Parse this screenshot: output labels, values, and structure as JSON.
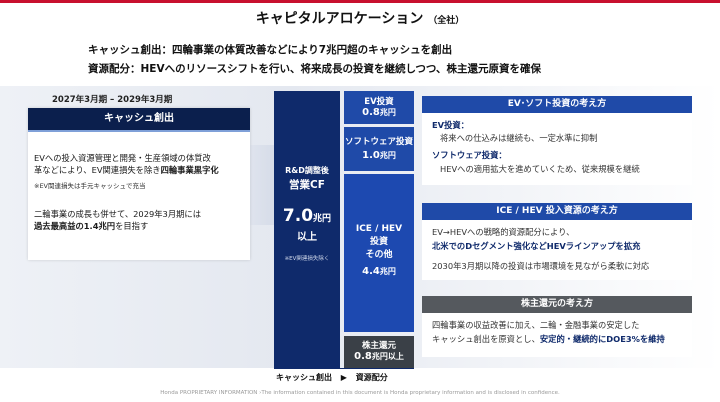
{
  "title": "キャピタルアロケーション",
  "title_sub": "（全社）",
  "summary": [
    "キャッシュ創出：四輪事業の体質改善などにより7兆円超のキャッシュを創出",
    "資源配分：HEVへのリソースシフトを行い、将来成長の投資を継続しつつ、株主還元原資を確保"
  ],
  "period": "2027年3月期 – 2029年3月期",
  "cash_creation": {
    "header": "キャッシュ創出",
    "line1": "EVへの投入資源管理と開発・生産領域の体質改",
    "line2_prefix": "革などにより、EV関連損失を除き",
    "line2_bold": "四輪事業黒字化",
    "note": "※EV関連損失は手元キャッシュで充当",
    "line3": "二輪事業の成長も併せて、2029年3月期には",
    "line4_bold": "過去最高益の1.4兆円",
    "line4_suffix": "を目指す"
  },
  "cf_bar": {
    "label1": "R&D調整後",
    "label2": "営業CF",
    "value": "7.0",
    "unit": "兆円",
    "suffix": "以上",
    "note": "※EV関連損失除く"
  },
  "allocation": [
    {
      "name": "EV投資",
      "value": "0.8",
      "unit": "兆円",
      "suffix": ""
    },
    {
      "name": "ソフトウェア投資",
      "value": "1.0",
      "unit": "兆円",
      "suffix": ""
    },
    {
      "name1": "ICE / HEV",
      "name2": "投資",
      "name3": "その他",
      "value": "4.4",
      "unit": "兆円",
      "suffix": ""
    },
    {
      "name": "株主還元",
      "value": "0.8",
      "unit": "兆円",
      "suffix": "以上"
    }
  ],
  "ev_software": {
    "header": "EV･ソフト投資の考え方",
    "label1": "EV投資：",
    "text1": "将来への仕込みは継続も、一定水準に抑制",
    "label2": "ソフトウェア投資：",
    "text2": "HEVへの適用拡大を進めていくため、従来規模を継続"
  },
  "ice_hev": {
    "header": "ICE / HEV 投入資源の考え方",
    "text1": "EV→HEVへの戦略的資源配分により、",
    "text2_bold": "北米でのDセグメント強化などHEVラインアップを拡充",
    "text3": "2030年3月期以降の投資は市場環境を見ながら柔軟に対応"
  },
  "shareholder": {
    "header": "株主還元の考え方",
    "text1": "四輪事業の収益改善に加え、二輪・金融事業の安定した",
    "text2_prefix": "キャッシュ創出を原資とし、",
    "text2_bold": "安定的・継続的にDOE3%を維持"
  },
  "flow": {
    "from": "キャッシュ創出",
    "arrow": "▶",
    "to": "資源配分"
  },
  "footer": "Honda PROPRIETARY INFORMATION  ›The information contained in this document is Honda proprietary information and is disclosed in confidence.",
  "colors": {
    "accent_red": "#c8102e",
    "navy": "#0f2a6b",
    "blue": "#1f4aa8",
    "gray": "#55595e"
  }
}
